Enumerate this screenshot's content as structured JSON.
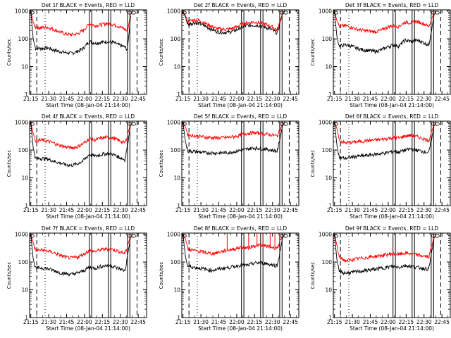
{
  "axis_common": {
    "ylabel": "Counts/sec",
    "xlabel": "Start Time (08-Jan-04 21:14:00)",
    "x_ticks": [
      "21:15",
      "21:30",
      "21:45",
      "22:00",
      "22:15",
      "22:30",
      "22:45"
    ],
    "x_tick_minutes": [
      1,
      16,
      31,
      46,
      61,
      76,
      91
    ],
    "y_ticks": [
      "1",
      "10",
      "100",
      "1000"
    ],
    "y_tick_values": [
      1,
      10,
      100,
      1000
    ],
    "xlim": [
      0,
      98
    ],
    "ylim": [
      1,
      1100
    ],
    "y_scale": "log"
  },
  "colors": {
    "events": "#000000",
    "lld": "#ff0000",
    "axes": "#000000"
  },
  "chart_data": [
    {
      "type": "line",
      "title": "Det 1f BLACK = Events, RED = LLD",
      "xlabel": "Start Time (08-Jan-04 21:14:00)",
      "ylabel": "Counts/sec",
      "x_unit": "minutes after 21:14:00",
      "series": [
        {
          "name": "Events",
          "color": "#000000",
          "x": [
            1,
            3,
            5,
            10,
            15,
            20,
            25,
            30,
            35,
            40,
            45,
            50,
            55,
            60,
            65,
            70,
            75,
            80,
            82,
            85
          ],
          "y": [
            1000,
            100,
            45,
            45,
            48,
            40,
            35,
            32,
            30,
            35,
            45,
            80,
            70,
            75,
            80,
            75,
            60,
            50,
            40,
            1000
          ]
        },
        {
          "name": "LLD",
          "color": "#ff0000",
          "x": [
            1,
            3,
            5,
            10,
            15,
            20,
            25,
            30,
            35,
            40,
            45,
            50,
            55,
            60,
            65,
            70,
            75,
            80,
            82,
            85
          ],
          "y": [
            1000,
            400,
            260,
            250,
            260,
            220,
            180,
            150,
            140,
            150,
            200,
            350,
            300,
            320,
            360,
            330,
            280,
            220,
            180,
            1000
          ]
        }
      ],
      "vlines_dashed": [
        6,
        90
      ],
      "vlines_dotted": [
        13
      ],
      "vlines_solid": [
        50,
        52,
        66,
        68,
        82,
        84
      ]
    },
    {
      "type": "line",
      "title": "Det 2f BLACK = Events, RED = LLD",
      "xlabel": "Start Time (08-Jan-04 21:14:00)",
      "ylabel": "Counts/sec",
      "x_unit": "minutes after 21:14:00",
      "series": [
        {
          "name": "Events",
          "color": "#000000",
          "x": [
            1,
            3,
            5,
            10,
            15,
            20,
            25,
            30,
            35,
            40,
            45,
            50,
            55,
            60,
            65,
            70,
            75,
            80,
            85
          ],
          "y": [
            1000,
            600,
            330,
            380,
            350,
            280,
            220,
            180,
            170,
            175,
            200,
            260,
            300,
            310,
            300,
            260,
            220,
            160,
            1000
          ]
        },
        {
          "name": "LLD",
          "color": "#ff0000",
          "x": [
            1,
            3,
            5,
            10,
            15,
            20,
            25,
            30,
            35,
            40,
            45,
            50,
            55,
            60,
            65,
            70,
            75,
            80,
            85
          ],
          "y": [
            1000,
            700,
            420,
            480,
            450,
            360,
            280,
            230,
            220,
            225,
            260,
            330,
            380,
            400,
            380,
            330,
            280,
            210,
            1000
          ]
        }
      ],
      "vlines_dashed": [
        6,
        90
      ],
      "vlines_dotted": [
        13
      ],
      "vlines_solid": [
        50,
        52,
        66,
        68,
        82,
        84
      ]
    },
    {
      "type": "line",
      "title": "Det 3f BLACK = Events, RED = LLD",
      "xlabel": "Start Time (08-Jan-04 21:14:00)",
      "ylabel": "Counts/sec",
      "x_unit": "minutes after 21:14:00",
      "series": [
        {
          "name": "Events",
          "color": "#000000",
          "x": [
            1,
            3,
            5,
            10,
            15,
            20,
            25,
            30,
            35,
            40,
            45,
            50,
            55,
            60,
            65,
            70,
            75,
            80,
            85
          ],
          "y": [
            1000,
            120,
            55,
            60,
            55,
            45,
            40,
            38,
            35,
            40,
            50,
            60,
            55,
            90,
            80,
            90,
            75,
            60,
            1000
          ]
        },
        {
          "name": "LLD",
          "color": "#ff0000",
          "x": [
            1,
            3,
            5,
            10,
            15,
            20,
            25,
            30,
            35,
            40,
            45,
            50,
            55,
            60,
            65,
            70,
            75,
            80,
            85
          ],
          "y": [
            1000,
            450,
            280,
            300,
            260,
            220,
            200,
            190,
            180,
            200,
            260,
            300,
            280,
            400,
            380,
            420,
            360,
            280,
            1000
          ]
        }
      ],
      "vlines_dashed": [
        6,
        90
      ],
      "vlines_dotted": [
        13
      ],
      "vlines_solid": [
        50,
        52,
        66,
        68,
        82,
        84
      ]
    },
    {
      "type": "line",
      "title": "Det 4f BLACK = Events, RED = LLD",
      "xlabel": "Start Time (08-Jan-04 21:14:00)",
      "ylabel": "Counts/sec",
      "x_unit": "minutes after 21:14:00",
      "series": [
        {
          "name": "Events",
          "color": "#000000",
          "x": [
            1,
            3,
            5,
            10,
            15,
            20,
            25,
            30,
            35,
            40,
            45,
            50,
            55,
            60,
            65,
            70,
            75,
            80,
            85
          ],
          "y": [
            1000,
            120,
            50,
            50,
            48,
            40,
            35,
            30,
            28,
            32,
            42,
            70,
            60,
            70,
            75,
            70,
            55,
            45,
            1000
          ]
        },
        {
          "name": "LLD",
          "color": "#ff0000",
          "x": [
            1,
            3,
            5,
            10,
            15,
            20,
            25,
            30,
            35,
            40,
            45,
            50,
            55,
            60,
            65,
            70,
            75,
            80,
            85
          ],
          "y": [
            1000,
            400,
            220,
            230,
            210,
            180,
            150,
            130,
            120,
            130,
            170,
            260,
            230,
            270,
            290,
            270,
            220,
            180,
            1000
          ]
        }
      ],
      "vlines_dashed": [
        6,
        90
      ],
      "vlines_dotted": [
        13
      ],
      "vlines_solid": [
        50,
        52,
        66,
        68,
        82,
        84
      ]
    },
    {
      "type": "line",
      "title": "Det 5f BLACK = Events, RED = LLD",
      "xlabel": "Start Time (08-Jan-04 21:14:00)",
      "ylabel": "Counts/sec",
      "x_unit": "minutes after 21:14:00",
      "series": [
        {
          "name": "Events",
          "color": "#000000",
          "x": [
            1,
            3,
            5,
            10,
            15,
            20,
            25,
            30,
            35,
            40,
            45,
            50,
            55,
            60,
            65,
            70,
            75,
            80,
            85
          ],
          "y": [
            1000,
            200,
            95,
            90,
            85,
            80,
            80,
            78,
            80,
            82,
            90,
            100,
            110,
            120,
            115,
            110,
            100,
            90,
            1000
          ]
        },
        {
          "name": "LLD",
          "color": "#ff0000",
          "x": [
            1,
            3,
            5,
            10,
            15,
            20,
            25,
            30,
            35,
            40,
            45,
            50,
            55,
            60,
            65,
            70,
            75,
            80,
            85
          ],
          "y": [
            1000,
            700,
            360,
            330,
            310,
            290,
            280,
            275,
            280,
            290,
            310,
            360,
            400,
            420,
            400,
            380,
            350,
            320,
            1000
          ]
        }
      ],
      "vlines_dashed": [
        6,
        90
      ],
      "vlines_dotted": [
        13
      ],
      "vlines_solid": [
        50,
        52,
        66,
        68,
        82,
        84
      ]
    },
    {
      "type": "line",
      "title": "Det 6f BLACK = Events, RED = LLD",
      "xlabel": "Start Time (08-Jan-04 21:14:00)",
      "ylabel": "Counts/sec",
      "x_unit": "minutes after 21:14:00",
      "series": [
        {
          "name": "Events",
          "color": "#000000",
          "x": [
            1,
            3,
            5,
            10,
            15,
            20,
            25,
            30,
            35,
            40,
            45,
            50,
            55,
            60,
            65,
            70,
            75,
            80,
            85
          ],
          "y": [
            1000,
            150,
            55,
            50,
            55,
            60,
            62,
            65,
            70,
            75,
            80,
            90,
            85,
            100,
            110,
            100,
            90,
            80,
            1000
          ]
        },
        {
          "name": "LLD",
          "color": "#ff0000",
          "x": [
            1,
            3,
            5,
            10,
            15,
            20,
            25,
            30,
            35,
            40,
            45,
            50,
            55,
            60,
            65,
            70,
            75,
            80,
            85
          ],
          "y": [
            1000,
            600,
            220,
            180,
            190,
            200,
            210,
            220,
            230,
            240,
            260,
            280,
            270,
            320,
            340,
            300,
            260,
            220,
            1000
          ]
        }
      ],
      "vlines_dashed": [
        6,
        90
      ],
      "vlines_dotted": [
        13
      ],
      "vlines_solid": [
        50,
        52,
        66,
        68,
        82,
        84
      ]
    },
    {
      "type": "line",
      "title": "Det 7f BLACK = Events, RED = LLD",
      "xlabel": "Start Time (08-Jan-04 21:14:00)",
      "ylabel": "Counts/sec",
      "x_unit": "minutes after 21:14:00",
      "series": [
        {
          "name": "Events",
          "color": "#000000",
          "x": [
            1,
            3,
            5,
            10,
            15,
            20,
            25,
            30,
            35,
            40,
            45,
            50,
            55,
            60,
            65,
            70,
            75,
            80,
            85
          ],
          "y": [
            1000,
            130,
            60,
            62,
            58,
            50,
            42,
            38,
            36,
            40,
            48,
            65,
            60,
            70,
            75,
            70,
            58,
            48,
            1000
          ]
        },
        {
          "name": "LLD",
          "color": "#ff0000",
          "x": [
            1,
            3,
            5,
            10,
            15,
            20,
            25,
            30,
            35,
            40,
            45,
            50,
            55,
            60,
            65,
            70,
            75,
            80,
            85
          ],
          "y": [
            1000,
            500,
            260,
            270,
            250,
            220,
            180,
            150,
            140,
            150,
            190,
            260,
            240,
            280,
            300,
            280,
            240,
            200,
            1000
          ]
        }
      ],
      "vlines_dashed": [
        6,
        90
      ],
      "vlines_dotted": [
        13
      ],
      "vlines_solid": [
        50,
        52,
        66,
        68,
        82,
        84
      ]
    },
    {
      "type": "line",
      "title": "Det 8f BLACK = Events, RED = LLD",
      "xlabel": "Start Time (08-Jan-04 21:14:00)",
      "ylabel": "Counts/sec",
      "x_unit": "minutes after 21:14:00",
      "series": [
        {
          "name": "Events",
          "color": "#000000",
          "x": [
            1,
            3,
            5,
            10,
            15,
            20,
            25,
            30,
            35,
            40,
            45,
            50,
            55,
            60,
            65,
            70,
            75,
            80,
            85
          ],
          "y": [
            1000,
            160,
            70,
            65,
            60,
            55,
            50,
            55,
            60,
            65,
            70,
            80,
            75,
            90,
            95,
            90,
            80,
            75,
            1000
          ]
        },
        {
          "name": "LLD",
          "color": "#ff0000",
          "x": [
            1,
            3,
            5,
            10,
            15,
            20,
            25,
            30,
            35,
            40,
            45,
            50,
            55,
            60,
            65,
            70,
            75,
            80,
            85
          ],
          "y": [
            1000,
            700,
            300,
            260,
            240,
            220,
            200,
            220,
            250,
            280,
            300,
            340,
            320,
            380,
            400,
            380,
            340,
            320,
            1000
          ]
        }
      ],
      "vlines_dashed": [
        6,
        90
      ],
      "vlines_dotted": [
        13
      ],
      "vlines_solid": [
        50,
        52,
        66,
        68,
        82,
        84
      ],
      "spikes_red": [
        38,
        56,
        63,
        68,
        74,
        78
      ]
    },
    {
      "type": "line",
      "title": "Det 9f BLACK = Events, RED = LLD",
      "xlabel": "Start Time (08-Jan-04 21:14:00)",
      "ylabel": "Counts/sec",
      "x_unit": "minutes after 21:14:00",
      "series": [
        {
          "name": "Events",
          "color": "#000000",
          "x": [
            1,
            3,
            5,
            10,
            15,
            20,
            25,
            30,
            35,
            40,
            45,
            50,
            55,
            60,
            65,
            70,
            75,
            80,
            85
          ],
          "y": [
            1000,
            120,
            45,
            40,
            42,
            45,
            48,
            52,
            55,
            60,
            65,
            70,
            65,
            75,
            70,
            65,
            60,
            55,
            1000
          ]
        },
        {
          "name": "LLD",
          "color": "#ff0000",
          "x": [
            1,
            3,
            5,
            10,
            15,
            20,
            25,
            30,
            35,
            40,
            45,
            50,
            55,
            60,
            65,
            70,
            75,
            80,
            85
          ],
          "y": [
            1000,
            400,
            150,
            110,
            120,
            130,
            140,
            150,
            160,
            170,
            185,
            200,
            190,
            210,
            200,
            180,
            165,
            150,
            1000
          ]
        }
      ],
      "vlines_dashed": [
        6,
        90
      ],
      "vlines_dotted": [
        13
      ],
      "vlines_solid": [
        50,
        52,
        66,
        68,
        82,
        84
      ]
    }
  ]
}
